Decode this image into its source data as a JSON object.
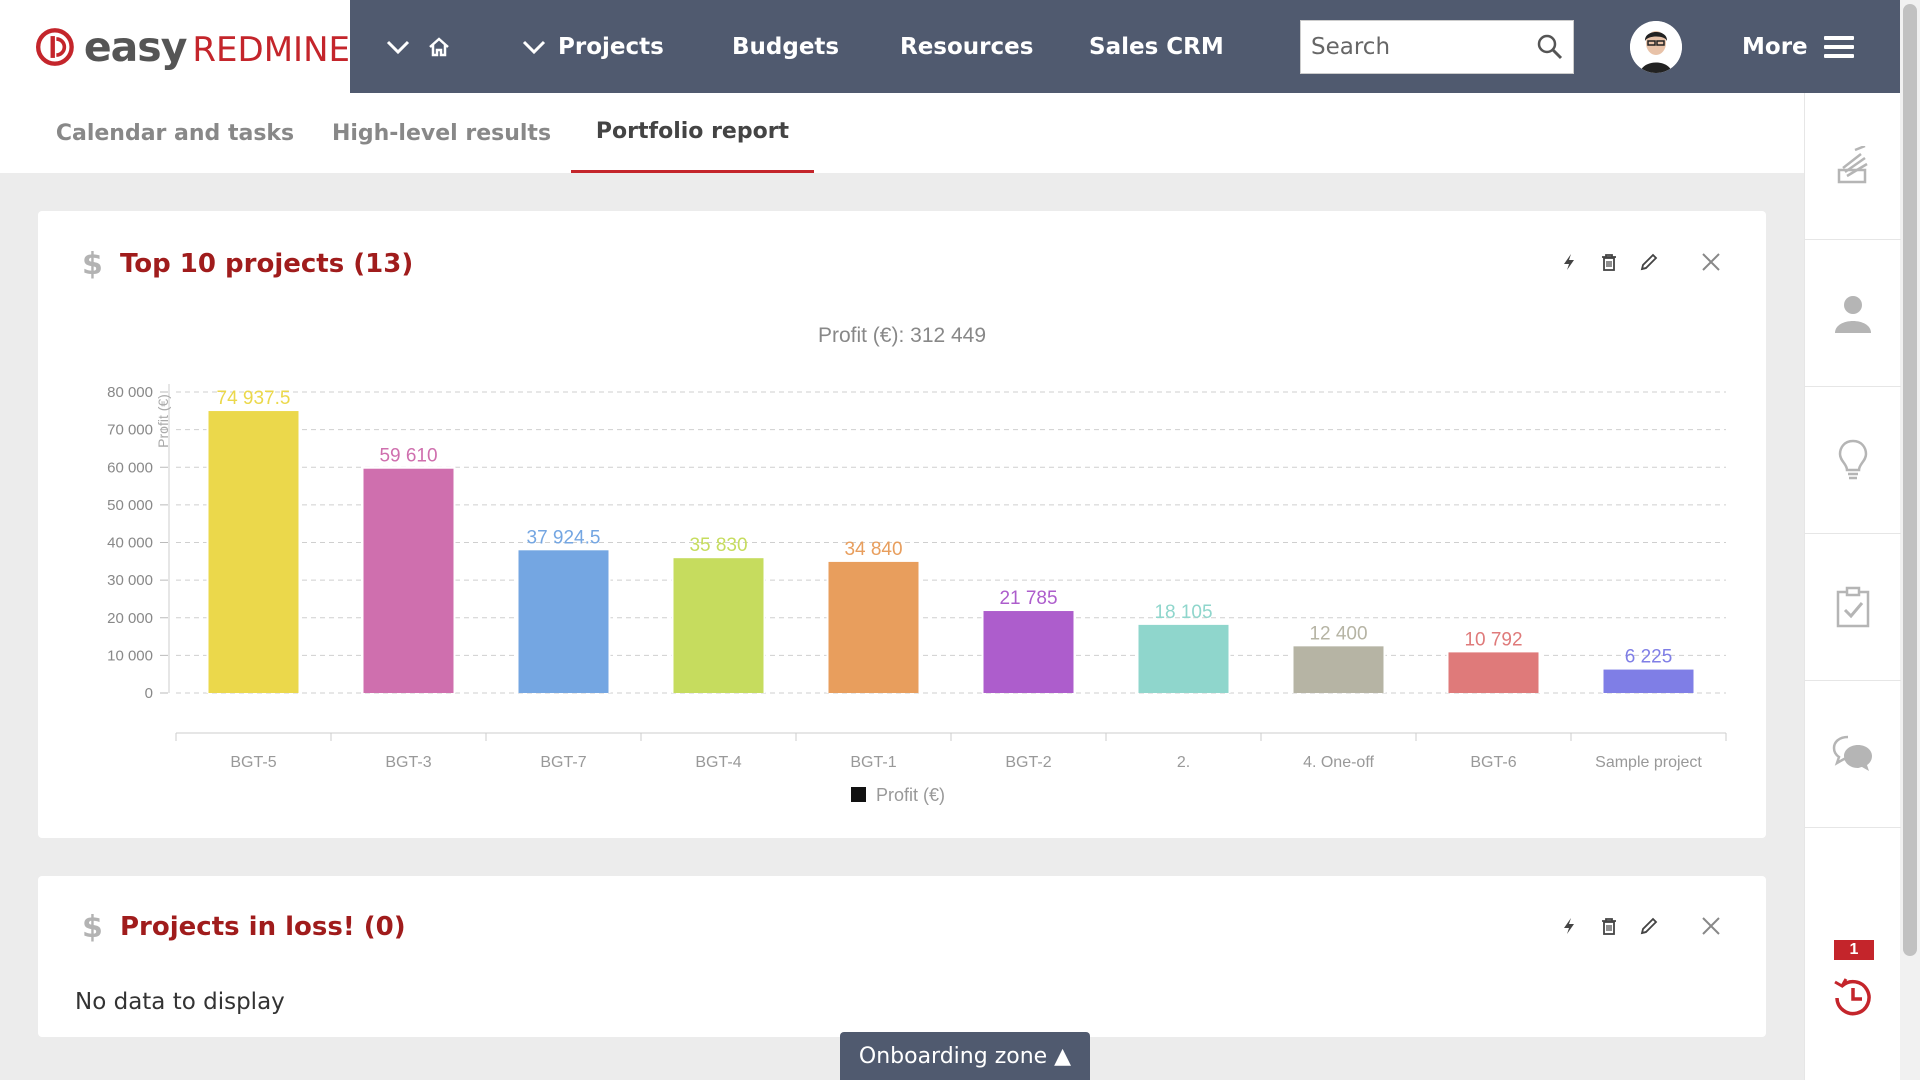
{
  "logo": {
    "easy": "easy",
    "brand": "REDMINE"
  },
  "nav": {
    "projects_label": "Projects",
    "budgets_label": "Budgets",
    "resources_label": "Resources",
    "sales_crm_label": "Sales CRM",
    "more_label": "More"
  },
  "search": {
    "placeholder": "Search"
  },
  "tabs": [
    {
      "label": "Calendar and tasks"
    },
    {
      "label": "High-level results"
    },
    {
      "label": "Portfolio report"
    }
  ],
  "panels": {
    "top_projects": {
      "title": "Top 10 projects (13)"
    },
    "loss_projects": {
      "title": "Projects in loss! (0)",
      "empty_text": "No data to display"
    }
  },
  "colors": {
    "brand_red": "#c4252b",
    "header_bg": "#505a6f"
  },
  "onboarding": {
    "label": "Onboarding zone ▲"
  },
  "sidebar": {
    "history_badge": "1"
  },
  "chart_data": {
    "type": "bar",
    "title": "Profit (€): 312 449",
    "ylabel": "Profit (€)",
    "ylim": [
      0,
      80000
    ],
    "yticks": [
      "0",
      "10 000",
      "20 000",
      "30 000",
      "40 000",
      "50 000",
      "60 000",
      "70 000",
      "80 000"
    ],
    "grid": true,
    "legend": {
      "position": "bottom",
      "entries": [
        "Profit (€)"
      ]
    },
    "categories": [
      "BGT-5",
      "BGT-3",
      "BGT-7",
      "BGT-4",
      "BGT-1",
      "BGT-2",
      "2.",
      "4. One-off",
      "BGT-6",
      "Sample project"
    ],
    "values": [
      74937.5,
      59610,
      37924.5,
      35830,
      34840,
      21785,
      18105,
      12400,
      10792,
      6225
    ],
    "labels": [
      "74 937.5",
      "59 610",
      "37 924.5",
      "35 830",
      "34 840",
      "21 785",
      "18 105",
      "12 400",
      "10 792",
      "6 225"
    ],
    "colors": [
      "#ebd84b",
      "#cf6fae",
      "#74a6e2",
      "#c6dc5e",
      "#e89e5d",
      "#ad5dcc",
      "#8fd6cc",
      "#b6b4a4",
      "#df7a7a",
      "#7f7ee6"
    ]
  }
}
